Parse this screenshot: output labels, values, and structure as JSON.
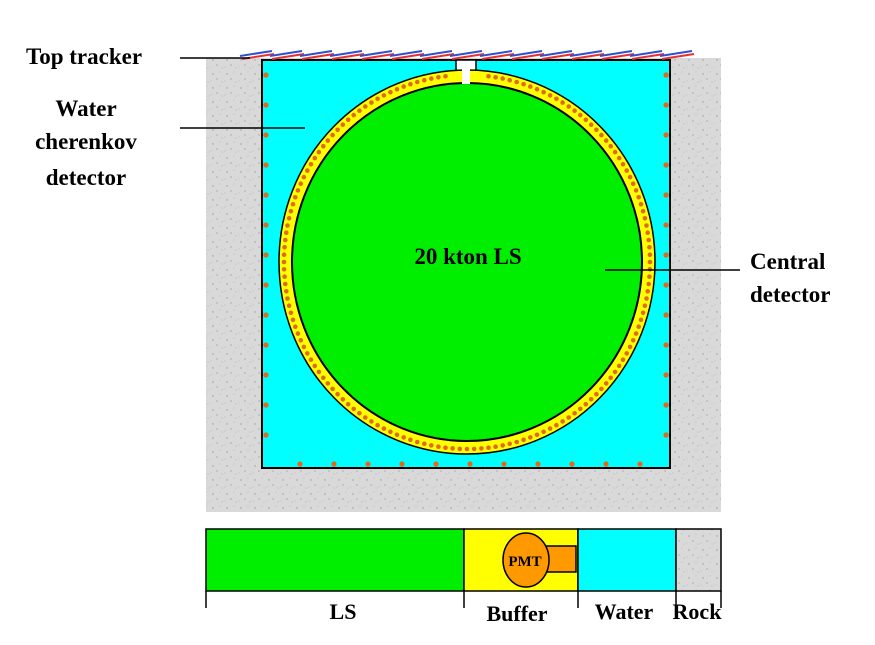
{
  "labels": {
    "top_tracker": "Top tracker",
    "water_cherenkov": [
      "Water",
      "cherenkov",
      "detector"
    ],
    "central_detector": [
      "Central",
      "detector"
    ],
    "ls_mass": "20 kton LS"
  },
  "legend": {
    "ls": "LS",
    "buffer": "Buffer",
    "water": "Water",
    "rock": "Rock",
    "pmt": "PMT"
  },
  "colors": {
    "rock": "#d9d9d9",
    "water": "#00ffff",
    "buffer": "#ffff00",
    "ls": "#00ee00",
    "pmt": "#ff9900",
    "pmt_dot": "#e06a1a",
    "tracker_red": "#e83030",
    "tracker_blue": "#3050d0",
    "outline": "#000000"
  }
}
